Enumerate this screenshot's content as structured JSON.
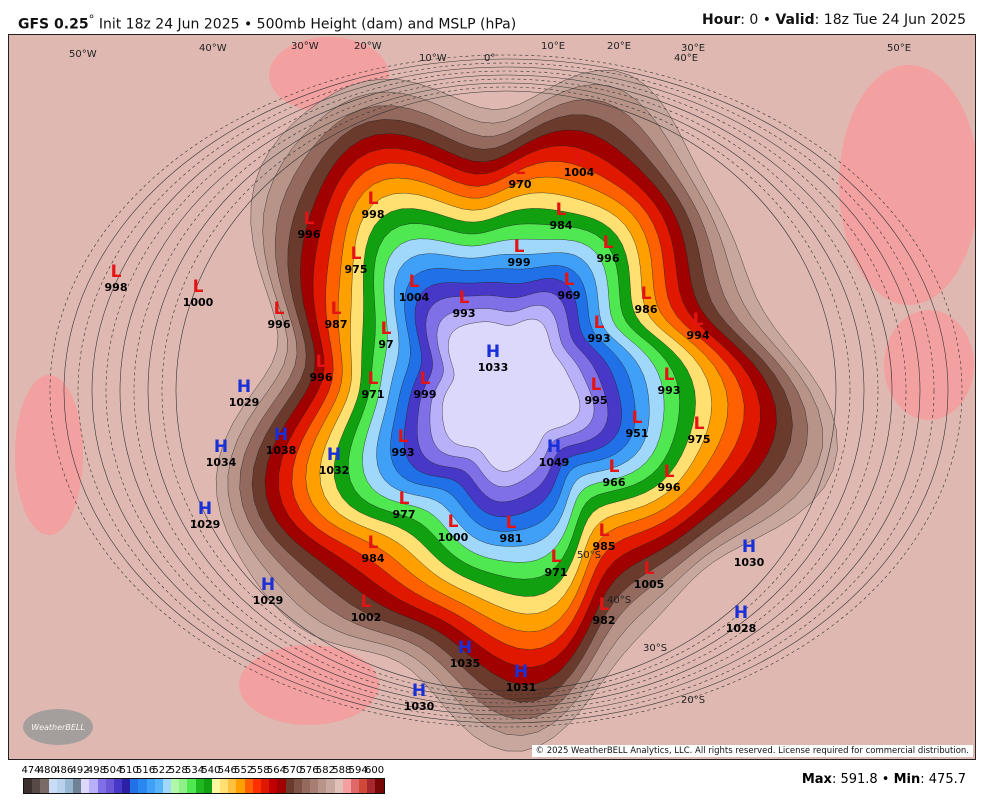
{
  "header": {
    "model": "GFS 0.25",
    "deg": "°",
    "init": " Init 18z 24 Jun 2025 • 500mb Height (dam) and MSLP (hPa)",
    "hour_label": "Hour",
    "hour": ": 0 • ",
    "valid_label": "Valid",
    "valid": ": 18z Tue 24 Jun 2025"
  },
  "colorbar": {
    "ticks": [
      "474",
      "480",
      "486",
      "492",
      "498",
      "504",
      "510",
      "516",
      "522",
      "528",
      "534",
      "540",
      "546",
      "552",
      "558",
      "564",
      "570",
      "576",
      "582",
      "588",
      "594",
      "600"
    ],
    "colors": [
      "#3b302d",
      "#574a46",
      "#7a6b66",
      "#c9dcf5",
      "#b8d2ee",
      "#96b6d2",
      "#6f8296",
      "#dcd8fc",
      "#b8b0f8",
      "#8070e8",
      "#6a58d8",
      "#4838c8",
      "#2c20a8",
      "#2070e8",
      "#2888f0",
      "#40a0f8",
      "#58b4f8",
      "#a0d8fc",
      "#b0f8a8",
      "#90f088",
      "#50e850",
      "#20b820",
      "#10a010",
      "#fff8a0",
      "#ffe070",
      "#ffc040",
      "#ffa000",
      "#ff6000",
      "#ff3000",
      "#e01800",
      "#c00000",
      "#a00000",
      "#6a3a2c",
      "#7e5244",
      "#946a5e",
      "#a87e72",
      "#b89488",
      "#c8a89e",
      "#e0c0b8",
      "#f4a0a0",
      "#e06868",
      "#d04838",
      "#a82830",
      "#780808"
    ]
  },
  "stats": {
    "max_label": "Max",
    "max": ": 591.8 • ",
    "min_label": "Min",
    "min": ": 475.7"
  },
  "systems": [
    {
      "t": "L",
      "v": "998"
    },
    {
      "t": "L",
      "v": "1000"
    },
    {
      "t": "L",
      "v": "996"
    },
    {
      "t": "L",
      "v": "998"
    },
    {
      "t": "L",
      "v": "975"
    },
    {
      "t": "L",
      "v": "1004"
    },
    {
      "t": "L",
      "v": "996"
    },
    {
      "t": "L",
      "v": "987"
    },
    {
      "t": "L",
      "v": "97"
    },
    {
      "t": "L",
      "v": "996"
    },
    {
      "t": "L",
      "v": "971"
    },
    {
      "t": "L",
      "v": "999"
    },
    {
      "t": "H",
      "v": "1029"
    },
    {
      "t": "H",
      "v": "1034"
    },
    {
      "t": "H",
      "v": "1038"
    },
    {
      "t": "H",
      "v": "1032"
    },
    {
      "t": "H",
      "v": "1029"
    },
    {
      "t": "H",
      "v": "1029"
    },
    {
      "t": "L",
      "v": "993"
    },
    {
      "t": "L",
      "v": "999"
    },
    {
      "t": "L",
      "v": "970"
    },
    {
      "t": "L",
      "v": "1004"
    },
    {
      "t": "L",
      "v": "984"
    },
    {
      "t": "L",
      "v": "996"
    },
    {
      "t": "L",
      "v": "969"
    },
    {
      "t": "L",
      "v": "986"
    },
    {
      "t": "L",
      "v": "994"
    },
    {
      "t": "L",
      "v": "993"
    },
    {
      "t": "L",
      "v": "993"
    },
    {
      "t": "L",
      "v": "951"
    },
    {
      "t": "L",
      "v": "975"
    },
    {
      "t": "L",
      "v": "996"
    },
    {
      "t": "L",
      "v": "966"
    },
    {
      "t": "L",
      "v": "995"
    },
    {
      "t": "H",
      "v": "1049"
    },
    {
      "t": "H",
      "v": "1033"
    },
    {
      "t": "L",
      "v": "993"
    },
    {
      "t": "L",
      "v": "977"
    },
    {
      "t": "L",
      "v": "1000"
    },
    {
      "t": "L",
      "v": "981"
    },
    {
      "t": "L",
      "v": "984"
    },
    {
      "t": "L",
      "v": "1002"
    },
    {
      "t": "L",
      "v": "971"
    },
    {
      "t": "L",
      "v": "985"
    },
    {
      "t": "L",
      "v": "1005"
    },
    {
      "t": "L",
      "v": "982"
    },
    {
      "t": "H",
      "v": "1030"
    },
    {
      "t": "H",
      "v": "1028"
    },
    {
      "t": "H",
      "v": "1035"
    },
    {
      "t": "H",
      "v": "1031"
    },
    {
      "t": "H",
      "v": "1030"
    }
  ],
  "geo_labels": [
    "50°W",
    "40°W",
    "30°W",
    "20°W",
    "10°W",
    "0°",
    "10°E",
    "20°E",
    "30°E",
    "40°E",
    "50°E",
    "50°S",
    "40°S",
    "30°S",
    "20°S"
  ],
  "copyright": "© 2025 WeatherBELL Analytics, LLC. All rights reserved. License required for commercial distribution.",
  "logo": "WeatherBELL"
}
